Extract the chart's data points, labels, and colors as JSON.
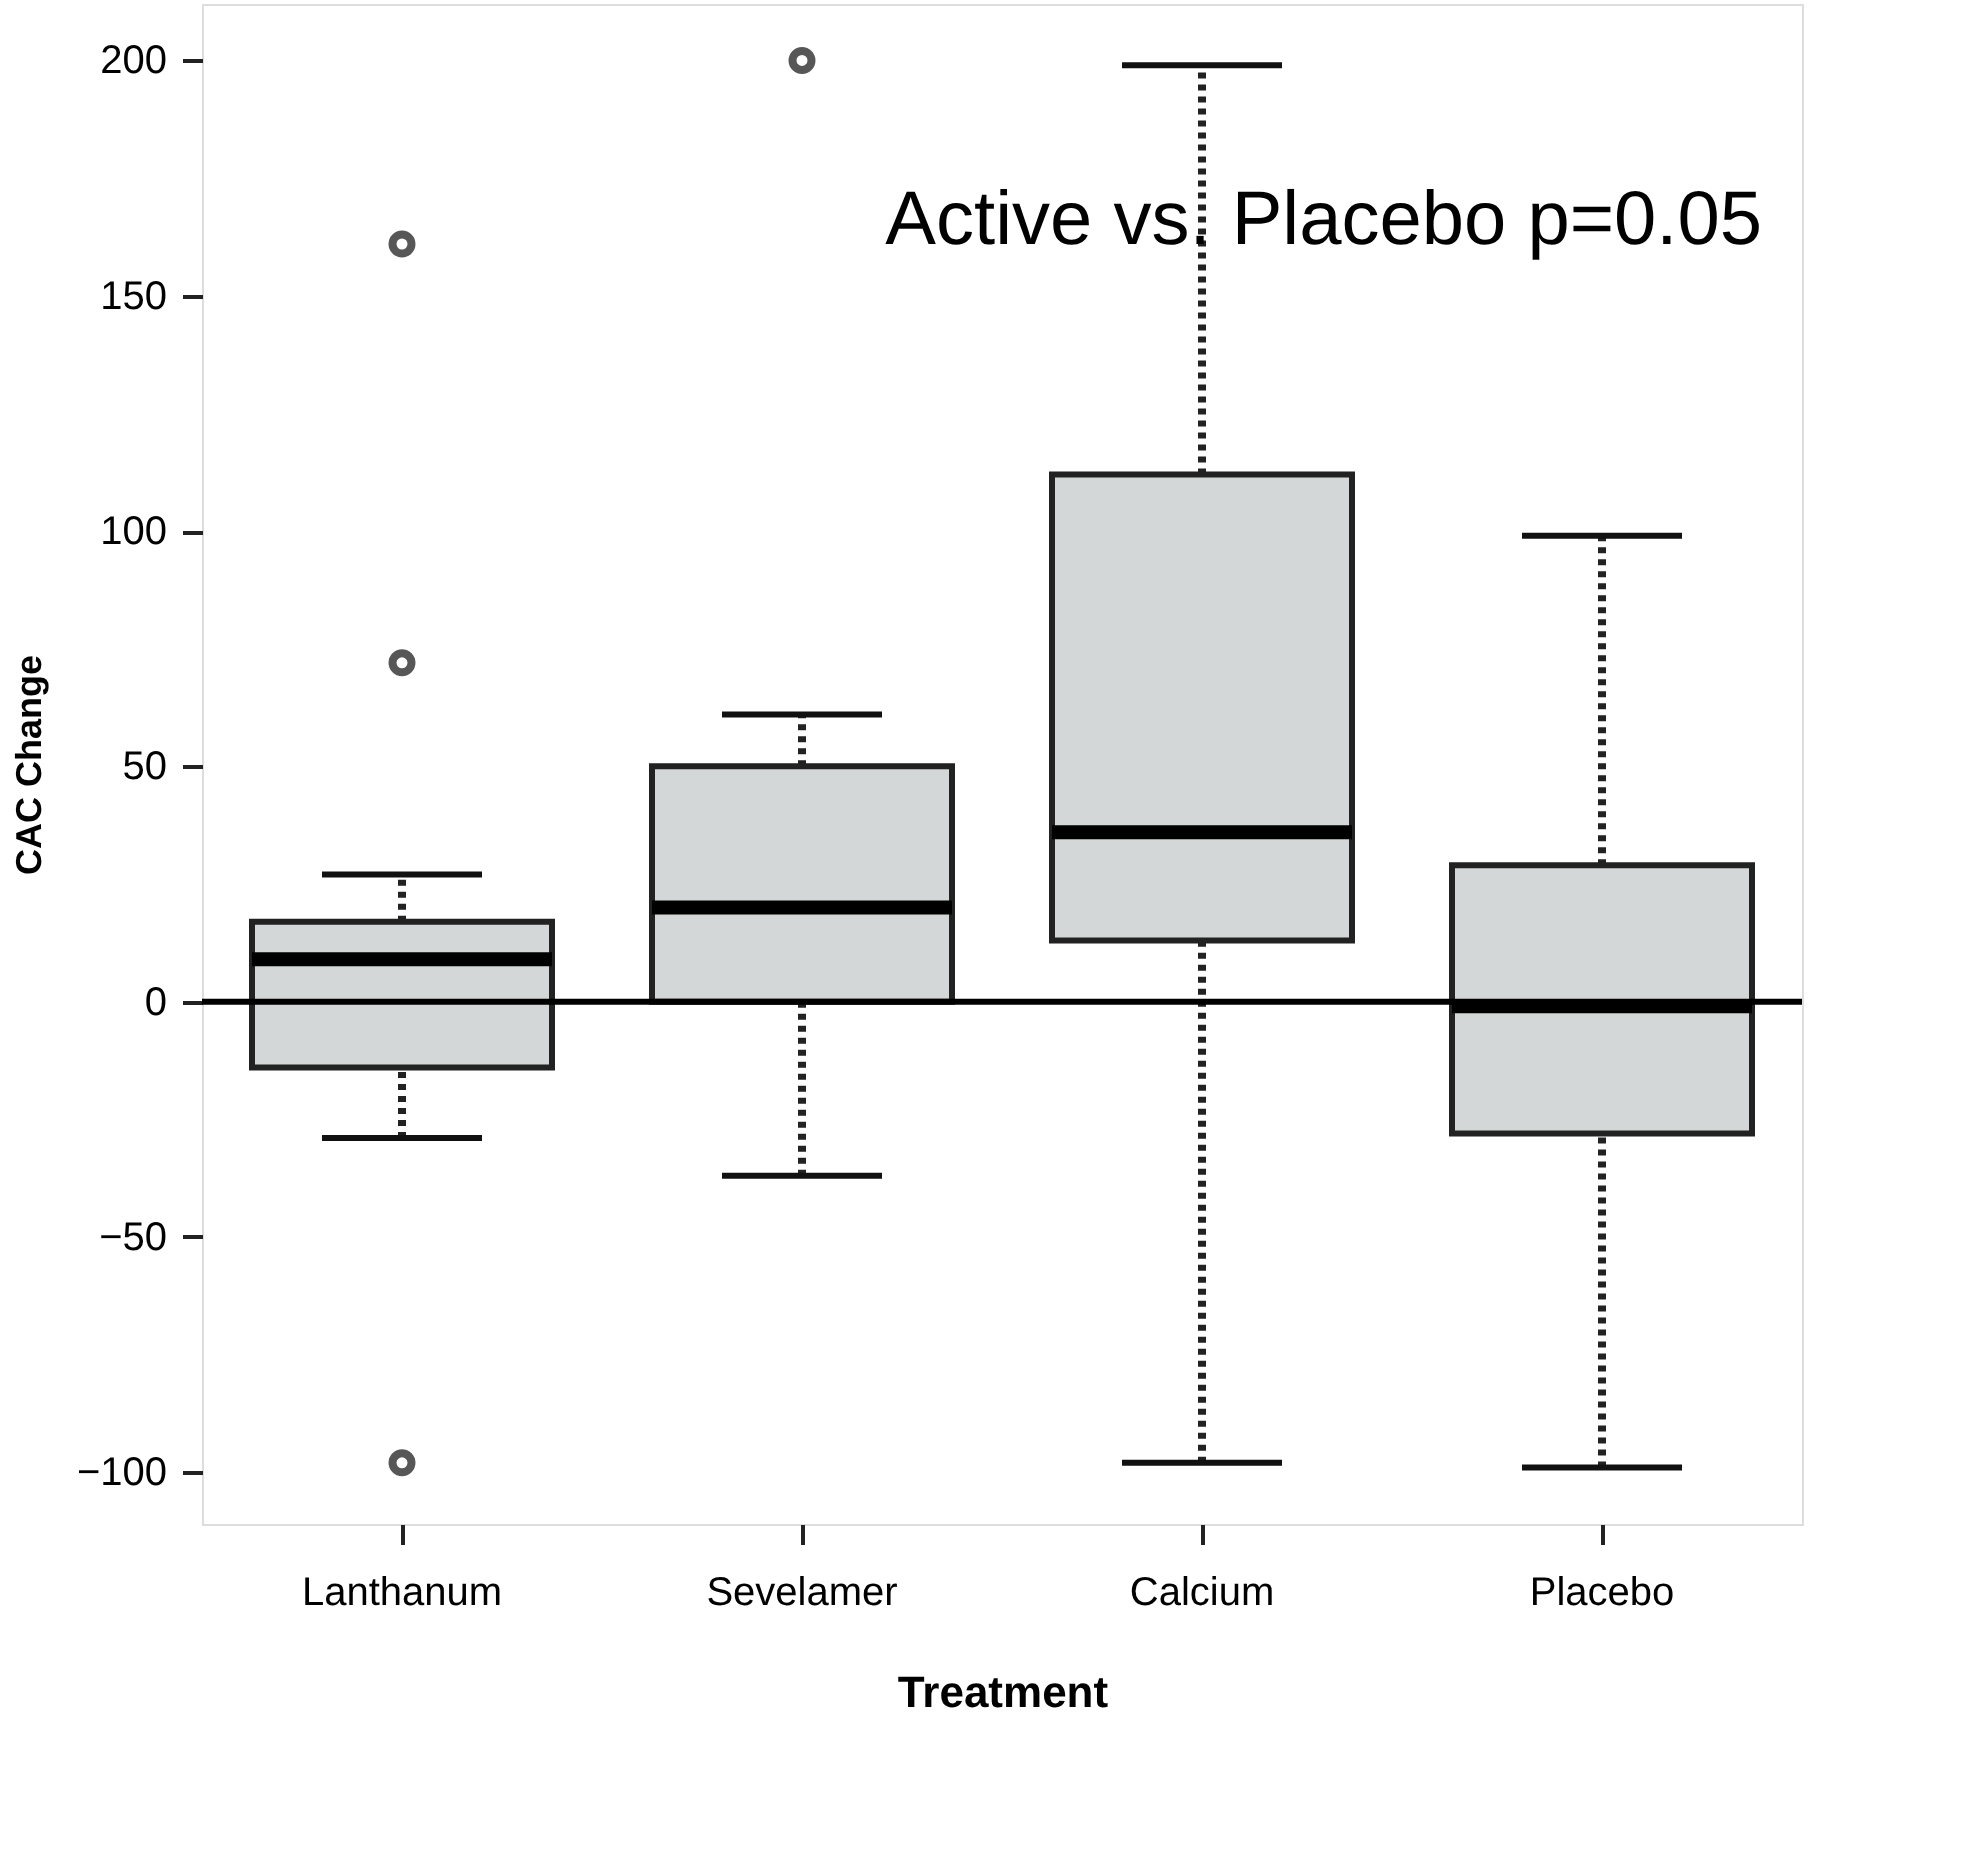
{
  "chart_data": {
    "type": "box",
    "xlabel": "Treatment",
    "ylabel": "CAC Change",
    "categories": [
      "Lanthanum",
      "Sevelamer",
      "Calcium",
      "Placebo"
    ],
    "boxes": [
      {
        "low": -29,
        "q1": -14,
        "median": 9,
        "q3": 17,
        "high": 27,
        "outliers": [
          161,
          72,
          -98
        ]
      },
      {
        "low": -37,
        "q1": 0,
        "median": 20,
        "q3": 50,
        "high": 61,
        "outliers": [
          200
        ]
      },
      {
        "low": -98,
        "q1": 13,
        "median": 36,
        "q3": 112,
        "high": 199
      },
      {
        "low": -99,
        "q1": -28,
        "median": -1,
        "q3": 29,
        "high": 99
      }
    ],
    "color": "#d4d7d7",
    "ylim": [
      -111,
      212
    ],
    "yticks": [
      -100,
      -50,
      0,
      50,
      100,
      150,
      200
    ],
    "ref_lines": [
      {
        "axis": "y",
        "value": 0,
        "label": null
      }
    ],
    "annotations": [
      "Active vs. Placebo p=0.05"
    ],
    "grid": false
  }
}
